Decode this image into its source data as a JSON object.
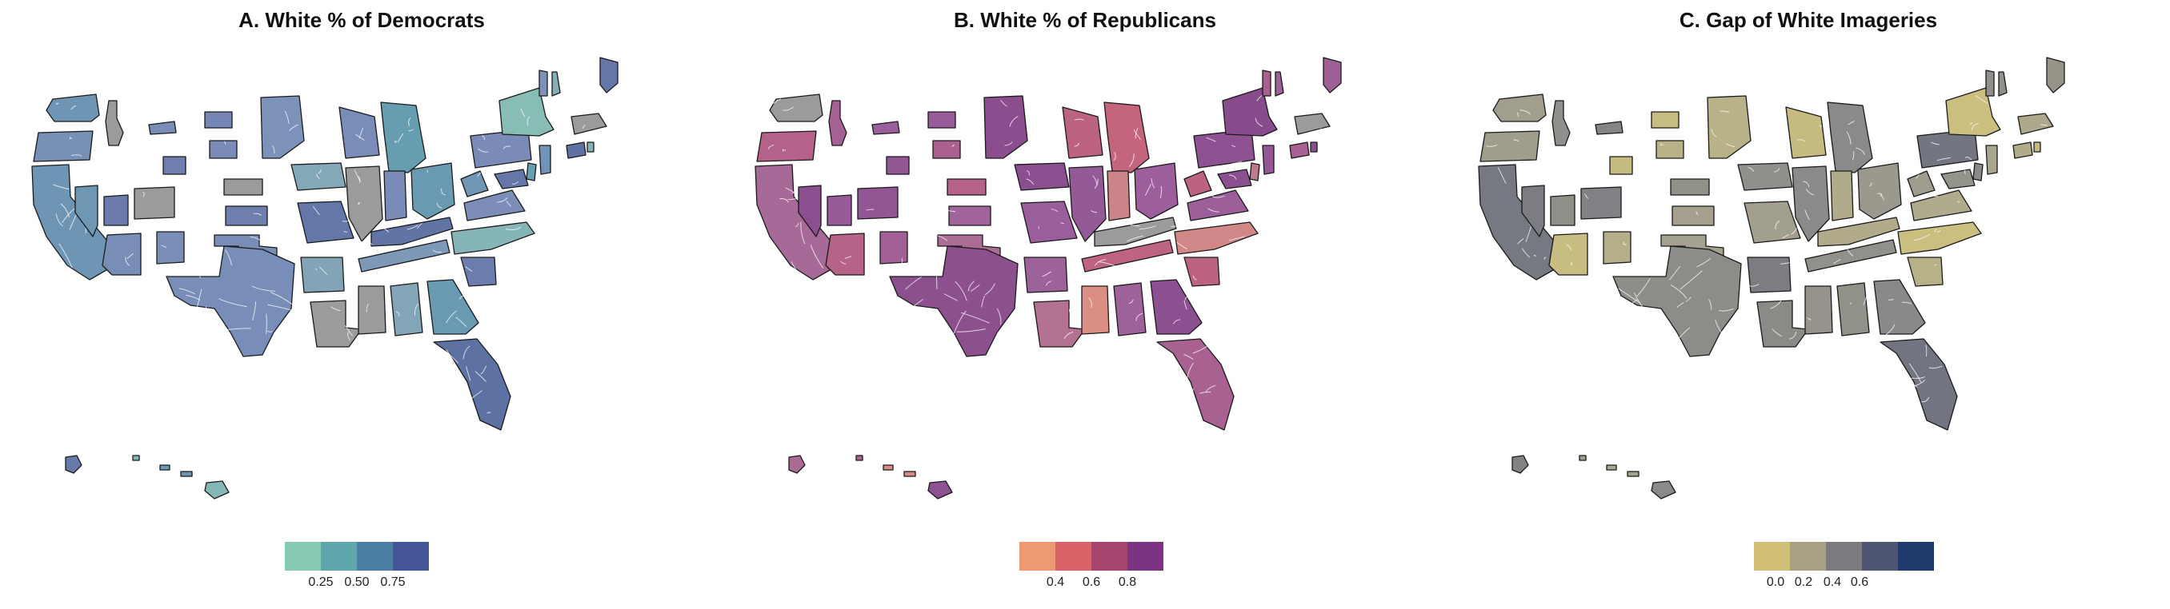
{
  "panels": [
    {
      "title": "A. White % of Democrats",
      "palette": {
        "base": "#7b8bb8",
        "light": "#8ccdb6",
        "mid": "#5aa8ad",
        "dark": "#4a5f94",
        "border": "#ffffff",
        "missing": "#9b9b9b"
      },
      "legend": {
        "colors": [
          "#86cab5",
          "#5ea8ad",
          "#4a7ea4",
          "#435597"
        ],
        "ticks": [
          "0.25",
          "0.50",
          "0.75"
        ]
      }
    },
    {
      "title": "B. White % of Republicans",
      "palette": {
        "base": "#9a5f9c",
        "light": "#ef9d7b",
        "mid": "#d8666f",
        "dark": "#7a3b7e",
        "border": "#ffffff",
        "missing": "#9b9b9b"
      },
      "legend": {
        "colors": [
          "#ef9874",
          "#da6269",
          "#a8456f",
          "#7b3382"
        ],
        "ticks": [
          "0.4",
          "0.6",
          "0.8"
        ]
      }
    },
    {
      "title": "C. Gap of White Imageries",
      "palette": {
        "base": "#a9a58f",
        "light": "#d4c77a",
        "mid": "#858589",
        "dark": "#4b5377",
        "border": "#ffffff",
        "missing": "#8a8a8a"
      },
      "legend": {
        "colors": [
          "#d2bf76",
          "#a9a185",
          "#7c7b80",
          "#4e5570",
          "#213a6d"
        ],
        "ticks": [
          "0.0",
          "0.2",
          "0.4",
          "0.6"
        ]
      }
    }
  ]
}
